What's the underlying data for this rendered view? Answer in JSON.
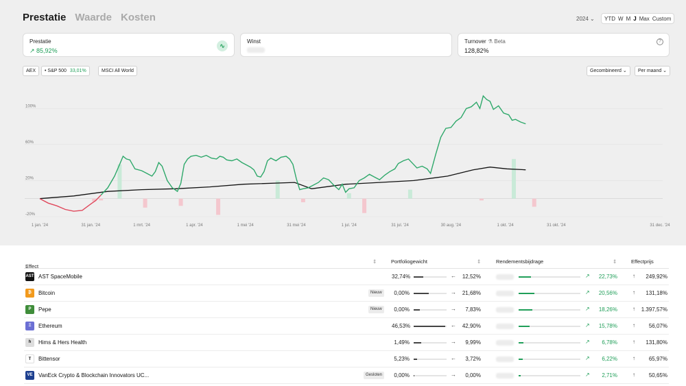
{
  "tabs": [
    "Prestatie",
    "Waarde",
    "Kosten"
  ],
  "year_select": "2024 ⌄",
  "ranges": [
    "YTD",
    "W",
    "M",
    "J",
    "Max",
    "Custom"
  ],
  "cards": {
    "prestatie": {
      "label": "Prestatie",
      "value": "↗ 85,92%"
    },
    "winst": {
      "label": "Winst"
    },
    "turnover": {
      "label": "Turnover",
      "beta": "Beta",
      "value": "128,82%"
    }
  },
  "benchmarks": {
    "aex": "AEX",
    "sp500": {
      "label": "S&P 500",
      "value": "33,01%"
    },
    "msci": "MSCI All World"
  },
  "dropdowns": {
    "mode": "Gecombineerd ⌄",
    "period": "Per maand ⌄"
  },
  "chart_data": {
    "type": "line",
    "y_ticks": [
      "100%",
      "60%",
      "20%",
      "-20%"
    ],
    "x_ticks": [
      "1 jan. '24",
      "31 jan. '24",
      "1 mrt. '24",
      "1 apr. '24",
      "1 mei '24",
      "31 mei '24",
      "1 jul. '24",
      "31 jul. '24",
      "30 aug. '24",
      "1 okt. '24",
      "31 okt. '24",
      "31 dec. '24"
    ],
    "ylim": [
      -20,
      120
    ],
    "colors": {
      "portfolio_up": "#2ea86a",
      "portfolio_down": "#e0485c",
      "benchmark": "#111111",
      "bar_up": "#c9ead8",
      "bar_down": "#f4c7ce"
    },
    "portfolio": [
      [
        0,
        0
      ],
      [
        5,
        -5
      ],
      [
        10,
        -8
      ],
      [
        15,
        -12
      ],
      [
        20,
        -14
      ],
      [
        25,
        -13
      ],
      [
        30,
        -6
      ],
      [
        33,
        -2
      ],
      [
        36,
        4
      ],
      [
        40,
        12
      ],
      [
        44,
        25
      ],
      [
        47,
        38
      ],
      [
        49,
        47
      ],
      [
        51,
        44
      ],
      [
        53,
        43
      ],
      [
        56,
        33
      ],
      [
        60,
        31
      ],
      [
        63,
        28
      ],
      [
        66,
        25
      ],
      [
        68,
        30
      ],
      [
        70,
        40
      ],
      [
        72,
        36
      ],
      [
        75,
        20
      ],
      [
        78,
        12
      ],
      [
        81,
        8
      ],
      [
        83,
        17
      ],
      [
        85,
        38
      ],
      [
        87,
        44
      ],
      [
        89,
        47
      ],
      [
        92,
        48
      ],
      [
        95,
        46
      ],
      [
        98,
        48
      ],
      [
        101,
        45
      ],
      [
        104,
        44
      ],
      [
        106,
        47
      ],
      [
        108,
        46
      ],
      [
        110,
        43
      ],
      [
        113,
        42
      ],
      [
        116,
        44
      ],
      [
        119,
        40
      ],
      [
        121,
        38
      ],
      [
        124,
        35
      ],
      [
        126,
        32
      ],
      [
        128,
        25
      ],
      [
        130,
        24
      ],
      [
        132,
        30
      ],
      [
        134,
        42
      ],
      [
        136,
        45
      ],
      [
        139,
        42
      ],
      [
        142,
        46
      ],
      [
        145,
        47
      ],
      [
        147,
        44
      ],
      [
        149,
        38
      ],
      [
        151,
        22
      ],
      [
        153,
        10
      ],
      [
        155,
        11
      ],
      [
        158,
        12
      ],
      [
        161,
        15
      ],
      [
        164,
        18
      ],
      [
        167,
        23
      ],
      [
        170,
        21
      ],
      [
        173,
        15
      ],
      [
        176,
        10
      ],
      [
        178,
        16
      ],
      [
        180,
        7
      ],
      [
        182,
        11
      ],
      [
        185,
        12
      ],
      [
        188,
        20
      ],
      [
        191,
        23
      ],
      [
        194,
        27
      ],
      [
        197,
        24
      ],
      [
        200,
        21
      ],
      [
        203,
        26
      ],
      [
        206,
        30
      ],
      [
        209,
        33
      ],
      [
        211,
        39
      ],
      [
        214,
        42
      ],
      [
        217,
        44
      ],
      [
        220,
        38
      ],
      [
        222,
        34
      ],
      [
        225,
        36
      ],
      [
        228,
        33
      ],
      [
        230,
        28
      ],
      [
        233,
        49
      ],
      [
        236,
        68
      ],
      [
        239,
        78
      ],
      [
        242,
        79
      ],
      [
        245,
        86
      ],
      [
        248,
        90
      ],
      [
        251,
        100
      ],
      [
        254,
        102
      ],
      [
        257,
        107
      ],
      [
        259,
        100
      ],
      [
        261,
        114
      ],
      [
        263,
        110
      ],
      [
        265,
        108
      ],
      [
        267,
        99
      ],
      [
        270,
        103
      ],
      [
        273,
        95
      ],
      [
        276,
        93
      ],
      [
        278,
        87
      ],
      [
        280,
        88
      ],
      [
        283,
        85
      ],
      [
        286,
        83
      ]
    ],
    "benchmark": [
      [
        0,
        0
      ],
      [
        20,
        3
      ],
      [
        40,
        8
      ],
      [
        60,
        10
      ],
      [
        80,
        11
      ],
      [
        100,
        13
      ],
      [
        120,
        16
      ],
      [
        150,
        18
      ],
      [
        160,
        11
      ],
      [
        180,
        16
      ],
      [
        200,
        18
      ],
      [
        220,
        20
      ],
      [
        240,
        25
      ],
      [
        255,
        32
      ],
      [
        265,
        35
      ],
      [
        275,
        33
      ],
      [
        286,
        32
      ]
    ],
    "bars": [
      [
        32,
        -3
      ],
      [
        36,
        -2
      ],
      [
        47,
        38
      ],
      [
        62,
        -10
      ],
      [
        83,
        -8
      ],
      [
        105,
        -18
      ],
      [
        140,
        20
      ],
      [
        155,
        -4
      ],
      [
        182,
        6
      ],
      [
        191,
        -16
      ],
      [
        218,
        10
      ],
      [
        260,
        -2
      ],
      [
        279,
        44
      ],
      [
        291,
        -9
      ]
    ]
  },
  "table": {
    "headers": {
      "effect": "Effect",
      "weight": "Portfoliogewicht",
      "contribution": "Rendementsbijdrage",
      "price": "Effectprijs"
    },
    "rows": [
      {
        "logo": "AST",
        "name": "AST SpaceMobile",
        "badge": "",
        "w1": "32,74%",
        "w2": "12,52%",
        "arrow": "←",
        "wfrac": 0.3,
        "rfrac": 0.2,
        "contrib": "22,73%",
        "price": "249,92%",
        "color": "#111111"
      },
      {
        "logo": "₿",
        "name": "Bitcoin",
        "badge": "Nieuw",
        "w1": "0,00%",
        "w2": "21,68%",
        "arrow": "→",
        "wfrac": 0.45,
        "rfrac": 0.25,
        "contrib": "20,56%",
        "price": "131,18%",
        "color": "#f29a1d"
      },
      {
        "logo": "P",
        "name": "Pepe",
        "badge": "Nieuw",
        "w1": "0,00%",
        "w2": "7,83%",
        "arrow": "→",
        "wfrac": 0.18,
        "rfrac": 0.22,
        "contrib": "18,26%",
        "price": "1.397,57%",
        "color": "#3f8d3a"
      },
      {
        "logo": "Ξ",
        "name": "Ethereum",
        "badge": "",
        "w1": "46,53%",
        "w2": "42,90%",
        "arrow": "←",
        "wfrac": 0.95,
        "rfrac": 0.18,
        "contrib": "15,78%",
        "price": "56,07%",
        "color": "#6b6fd4"
      },
      {
        "logo": "h",
        "name": "Hims & Hers Health",
        "badge": "",
        "w1": "1,49%",
        "w2": "9,99%",
        "arrow": "→",
        "wfrac": 0.22,
        "rfrac": 0.08,
        "contrib": "6,78%",
        "price": "131,80%",
        "color": "#dddddd"
      },
      {
        "logo": "T",
        "name": "Bittensor",
        "badge": "",
        "w1": "5,23%",
        "w2": "3,72%",
        "arrow": "←",
        "wfrac": 0.1,
        "rfrac": 0.07,
        "contrib": "6,22%",
        "price": "65,97%",
        "color": "#ffffff"
      },
      {
        "logo": "VE",
        "name": "VanEck Crypto & Blockchain Innovators UC...",
        "badge": "Gesloten",
        "w1": "0,00%",
        "w2": "0,00%",
        "arrow": "→",
        "wfrac": 0.02,
        "rfrac": 0.03,
        "contrib": "2,71%",
        "price": "50,65%",
        "color": "#1d3f8f"
      }
    ]
  }
}
